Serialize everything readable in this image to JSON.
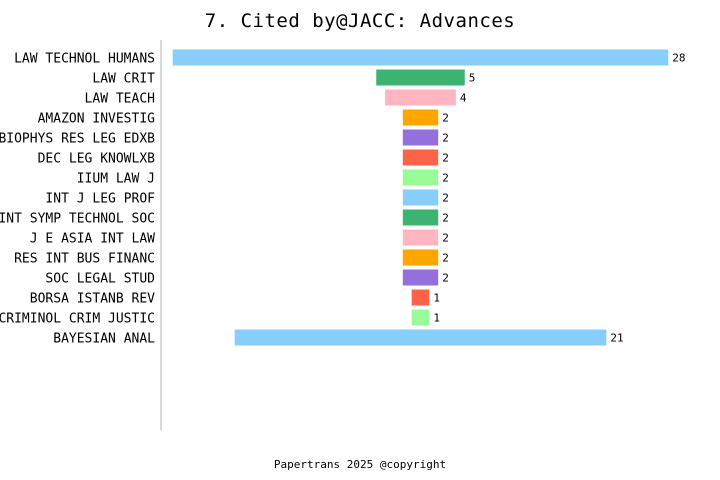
{
  "chart_data": {
    "type": "bar",
    "orientation": "horizontal",
    "title": "7. Cited by@JACC: Advances",
    "xlabel": "",
    "ylabel": "",
    "categories": [
      "LAW TECHNOL HUMANS",
      "LAW CRIT",
      "LAW TEACH",
      "AMAZON INVESTIG",
      "BIOPHYS RES LEG EDXB",
      "DEC LEG KNOWLXB",
      "IIUM LAW J",
      "INT J LEG PROF",
      "INT SYMP TECHNOL SOC",
      "J E ASIA INT LAW",
      "RES INT BUS FINANC",
      "SOC LEGAL STUD",
      "BORSA ISTANB REV",
      "CRIMINOL CRIM JUSTIC",
      "BAYESIAN ANAL"
    ],
    "values": [
      28,
      5,
      4,
      2,
      2,
      2,
      2,
      2,
      2,
      2,
      2,
      2,
      1,
      1,
      21
    ],
    "colors": [
      "#87CEFA",
      "#3CB371",
      "#FFB6C1",
      "#FFA500",
      "#9370DB",
      "#FF6347",
      "#98FB98",
      "#87CEFA",
      "#3CB371",
      "#FFB6C1",
      "#FFA500",
      "#9370DB",
      "#FF6347",
      "#98FB98",
      "#87CEFA"
    ],
    "bar_alignment": "centered",
    "grid": false,
    "legend": "none"
  },
  "footer": "Papertrans 2025 @copyright"
}
